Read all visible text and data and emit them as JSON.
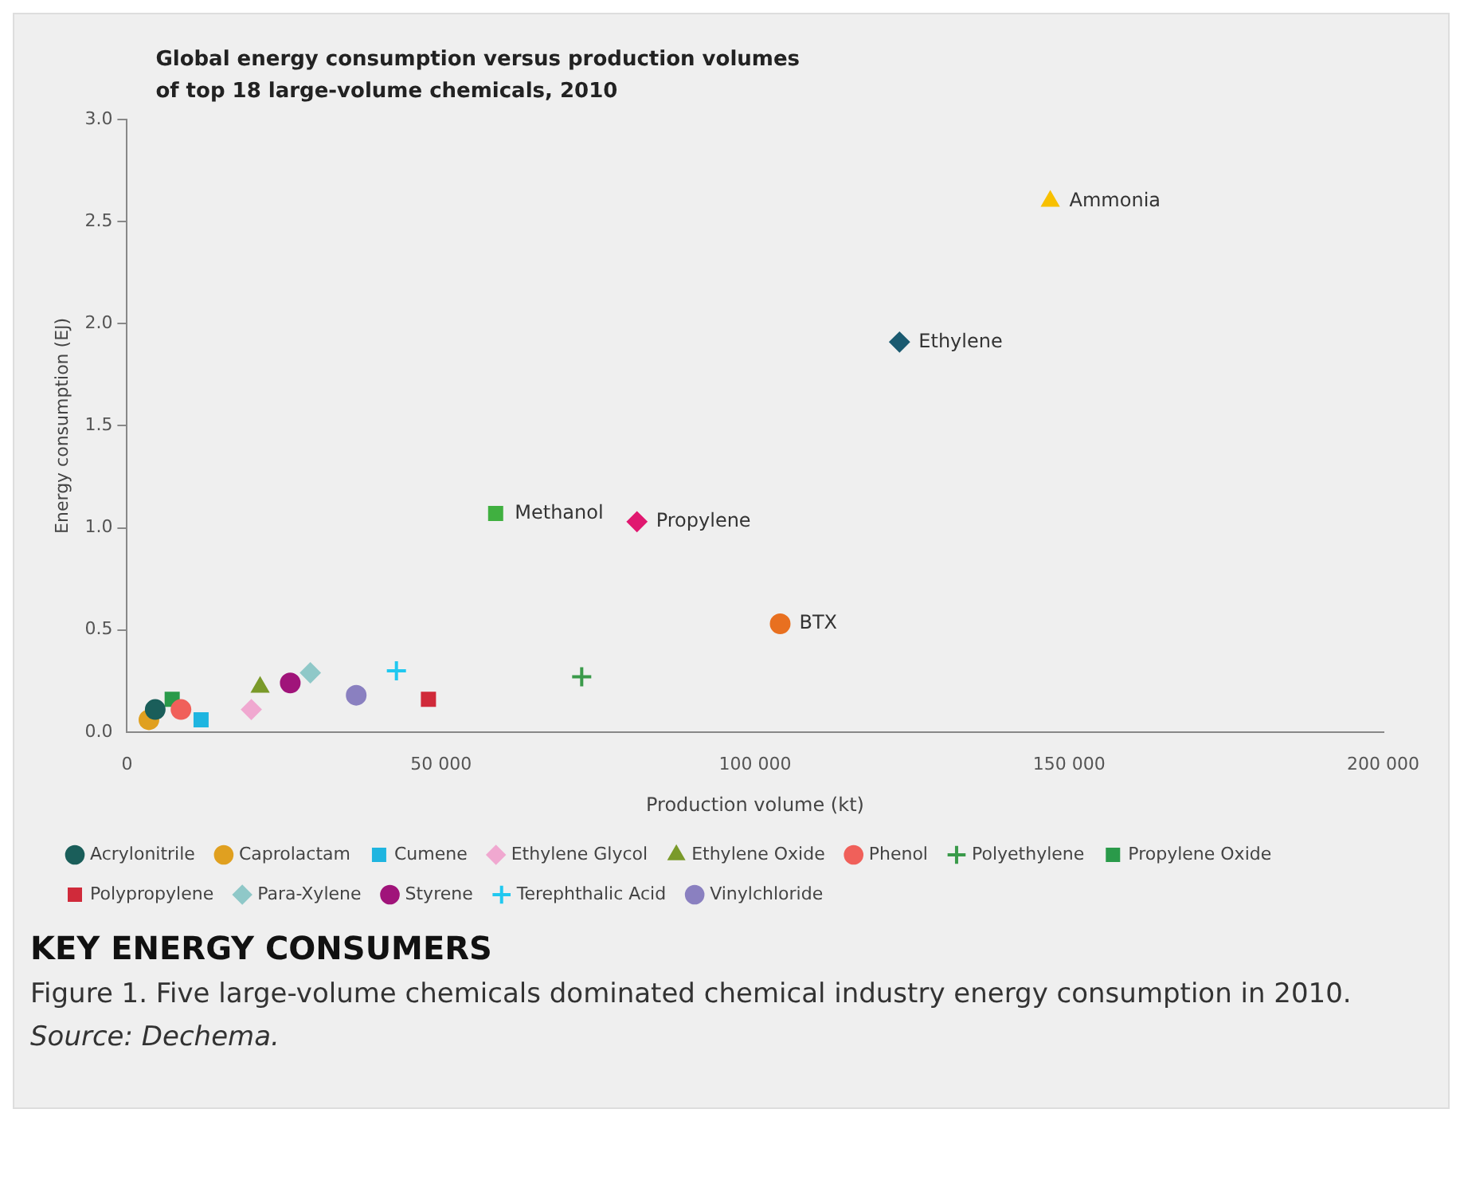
{
  "chart_data": {
    "type": "scatter",
    "title": [
      "Global energy consumption versus production volumes",
      "of top 18 large-volume chemicals, 2010"
    ],
    "xlabel": "Production volume (kt)",
    "ylabel": "Energy consumption (EJ)",
    "xlim": [
      0,
      200000
    ],
    "xticks": [
      0,
      {
        "value": 50000,
        "label": "50 000"
      },
      {
        "value": 100000,
        "label": "100 000"
      },
      {
        "value": 150000,
        "label": "150 000"
      },
      {
        "value": 200000,
        "label": "200 000"
      }
    ],
    "ylim": [
      0,
      3
    ],
    "yticks": [
      {
        "value": 0,
        "label": "0.0"
      },
      {
        "value": 0.5,
        "label": "0.5"
      },
      {
        "value": 1,
        "label": "1.0"
      },
      {
        "value": 1.5,
        "label": "1.5"
      },
      {
        "value": 2,
        "label": "2.0"
      },
      {
        "value": 2.5,
        "label": "2.5"
      },
      {
        "value": 3,
        "label": "3.0"
      }
    ],
    "grid": false,
    "legend": "bottom",
    "series": [
      {
        "name": "Acrylonitrile",
        "color": "#1a5e5a",
        "marker": "circle",
        "x": [
          4500
        ],
        "values": [
          0.11
        ]
      },
      {
        "name": "Caprolactam",
        "color": "#e0a020",
        "marker": "circle",
        "x": [
          3500
        ],
        "values": [
          0.06
        ]
      },
      {
        "name": "Cumene",
        "color": "#1fb5e0",
        "marker": "square",
        "x": [
          11800
        ],
        "values": [
          0.06
        ]
      },
      {
        "name": "Ethylene Glycol",
        "color": "#f0a8d0",
        "marker": "diamond",
        "x": [
          19800
        ],
        "values": [
          0.11
        ]
      },
      {
        "name": "Ethylene Oxide",
        "color": "#7a9a2a",
        "marker": "triangle",
        "x": [
          21200
        ],
        "values": [
          0.22
        ]
      },
      {
        "name": "Phenol",
        "color": "#f0605a",
        "marker": "circle",
        "x": [
          8600
        ],
        "values": [
          0.11
        ]
      },
      {
        "name": "Polyethylene",
        "color": "#3a9a4a",
        "marker": "cross",
        "x": [
          72400
        ],
        "values": [
          0.27
        ]
      },
      {
        "name": "Propylene Oxide",
        "color": "#2a9a4a",
        "marker": "square",
        "x": [
          7200
        ],
        "values": [
          0.16
        ]
      },
      {
        "name": "Polypropylene",
        "color": "#d02a3a",
        "marker": "square",
        "x": [
          48000
        ],
        "values": [
          0.16
        ]
      },
      {
        "name": "Para-Xylene",
        "color": "#8fc8c8",
        "marker": "diamond",
        "x": [
          29200
        ],
        "values": [
          0.29
        ]
      },
      {
        "name": "Styrene",
        "color": "#a0147a",
        "marker": "circle",
        "x": [
          26000
        ],
        "values": [
          0.24
        ]
      },
      {
        "name": "Terephthalic Acid",
        "color": "#20c8f0",
        "marker": "cross",
        "x": [
          42900
        ],
        "values": [
          0.3
        ]
      },
      {
        "name": "Vinylchloride",
        "color": "#8a80c0",
        "marker": "circle",
        "x": [
          36500
        ],
        "values": [
          0.18
        ]
      },
      {
        "color": "#f8c000",
        "marker": "triangle",
        "x": [
          147000
        ],
        "values": [
          2.6
        ]
      },
      {
        "color": "#1a5a70",
        "marker": "diamond",
        "x": [
          123000
        ],
        "values": [
          1.91
        ]
      },
      {
        "color": "#40b040",
        "marker": "square",
        "x": [
          58700
        ],
        "values": [
          1.07
        ]
      },
      {
        "color": "#e01870",
        "marker": "diamond",
        "x": [
          81200
        ],
        "values": [
          1.03
        ]
      },
      {
        "color": "#e87020",
        "marker": "circle",
        "x": [
          104000
        ],
        "values": [
          0.53
        ]
      }
    ],
    "annotations": [
      {
        "text": "Ammonia",
        "x": 147000,
        "y": 2.6
      },
      {
        "text": "Ethylene",
        "x": 123000,
        "y": 1.91
      },
      {
        "text": "Methanol",
        "x": 58700,
        "y": 1.07
      },
      {
        "text": "Propylene",
        "x": 81200,
        "y": 1.03
      },
      {
        "text": "BTX",
        "x": 104000,
        "y": 0.53
      },
      "KEY ENERGY CONSUMERS",
      "Figure 1. Five large-volume chemicals dominated chemical industry energy consumption in 2010.",
      "Source: Dechema."
    ]
  }
}
